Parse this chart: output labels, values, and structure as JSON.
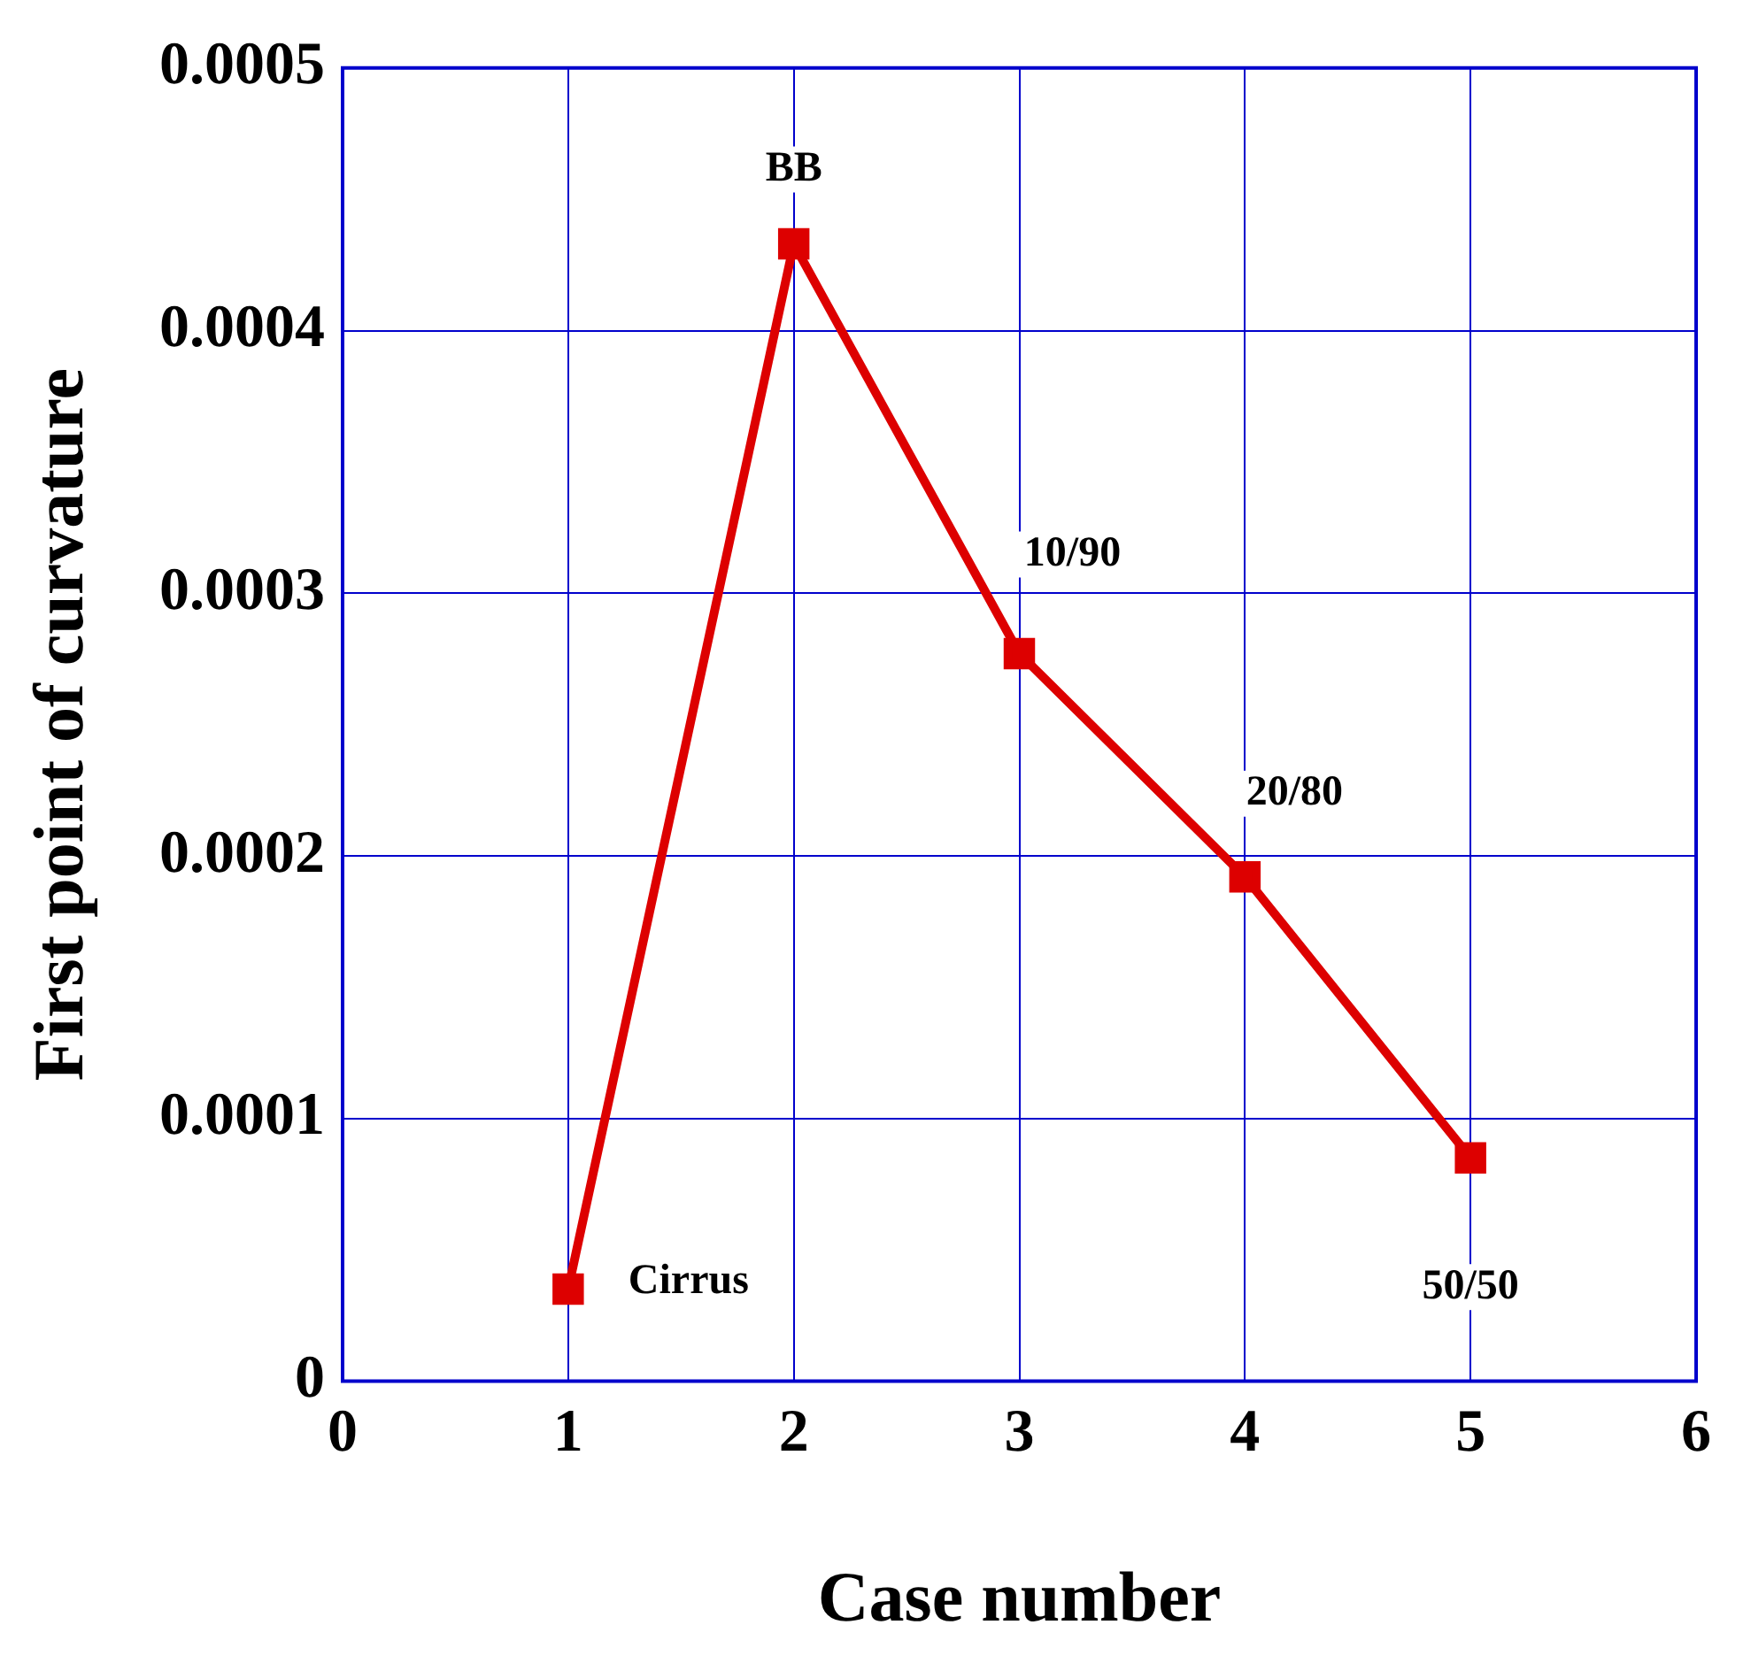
{
  "chart_data": {
    "type": "line",
    "xlabel": "Case number",
    "ylabel": "First point of curvature",
    "x": [
      1,
      2,
      3,
      4,
      5
    ],
    "series": [
      {
        "color": "#dd0000",
        "values": [
          3.5e-05,
          0.000433,
          0.000277,
          0.000192,
          8.5e-05
        ]
      }
    ],
    "xlim": [
      0,
      6
    ],
    "xticks": [
      0,
      1,
      2,
      3,
      4,
      5,
      6
    ],
    "ylim": [
      0,
      0.0005
    ],
    "yticks": [
      0,
      0.0001,
      0.0002,
      0.0003,
      0.0004,
      0.0005
    ],
    "grid": true,
    "marker": "square",
    "line_style": "solid",
    "annotations": [
      {
        "text": "Cirrus",
        "x": 1,
        "y": 3.5e-05
      },
      {
        "text": "BB",
        "x": 2,
        "y": 0.000433
      },
      {
        "text": "10/90",
        "x": 3,
        "y": 0.000277
      },
      {
        "text": "20/80",
        "x": 4,
        "y": 0.000192
      },
      {
        "text": "50/50",
        "x": 5,
        "y": 8.5e-05
      }
    ]
  }
}
